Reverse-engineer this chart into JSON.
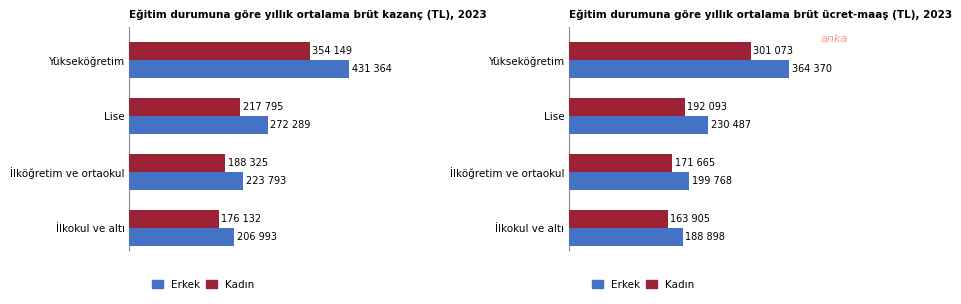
{
  "chart1": {
    "title": "Eğitim durumuna göre yıllık ortalama brüt kazanç (TL), 2023",
    "categories": [
      "Yükseköğretim",
      "Lise",
      "İlköğretim ve ortaokul",
      "İlkokul ve altı"
    ],
    "erkek": [
      431364,
      272289,
      223793,
      206993
    ],
    "kadin": [
      354149,
      217795,
      188325,
      176132
    ],
    "erkek_labels": [
      "431 364",
      "272 289",
      "223 793",
      "206 993"
    ],
    "kadin_labels": [
      "354 149",
      "217 795",
      "188 325",
      "176 132"
    ]
  },
  "chart2": {
    "title": "Eğitim durumuna göre yıllık ortalama brüt ücret-maaş (TL), 2023",
    "categories": [
      "Yükseköğretim",
      "Lise",
      "İlköğretim ve ortaokul",
      "İlkokul ve altı"
    ],
    "erkek": [
      364370,
      230487,
      199768,
      188898
    ],
    "kadin": [
      301073,
      192093,
      171665,
      163905
    ],
    "erkek_labels": [
      "364 370",
      "230 487",
      "199 768",
      "188 898"
    ],
    "kadin_labels": [
      "301 073",
      "192 093",
      "171 665",
      "163 905"
    ],
    "watermark": "anka"
  },
  "erkek_color": "#4472C4",
  "kadin_color": "#9B2335",
  "bar_height": 0.32,
  "legend_erkek": "Erkek",
  "legend_kadin": "Kadın",
  "title_fontsize": 7.5,
  "label_fontsize": 7,
  "tick_fontsize": 7.5,
  "legend_fontsize": 7.5,
  "background_color": "#ffffff"
}
